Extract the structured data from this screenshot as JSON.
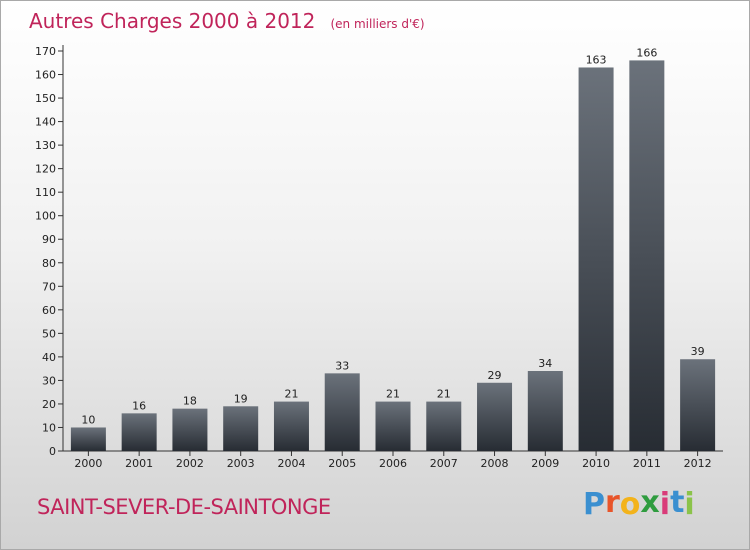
{
  "colors": {
    "accent": "#c0245a",
    "bar_light": "#6b727b",
    "bar_dark": "#272c33",
    "axis": "#333333",
    "text": "#222222"
  },
  "header": {
    "title": "Autres Charges 2000 à 2012",
    "subtitle": "(en milliers d'€)"
  },
  "footer": {
    "commune": "SAINT-SEVER-DE-SAINTONGE",
    "brand_letters": [
      "P",
      "r",
      "o",
      "x",
      "i",
      "t",
      "i"
    ],
    "brand_colors": [
      "#3a8fd0",
      "#e8552a",
      "#f3b31b",
      "#2f9c3f",
      "#d93b79",
      "#3a8fd0",
      "#8bc34a"
    ]
  },
  "chart_data": {
    "type": "bar",
    "title": "Autres Charges 2000 à 2012",
    "subtitle": "(en milliers d'€)",
    "categories": [
      "2000",
      "2001",
      "2002",
      "2003",
      "2004",
      "2005",
      "2006",
      "2007",
      "2008",
      "2009",
      "2010",
      "2011",
      "2012"
    ],
    "values": [
      10,
      16,
      18,
      19,
      21,
      33,
      21,
      21,
      29,
      34,
      163,
      166,
      39
    ],
    "ylim": [
      0,
      170
    ],
    "yticks": [
      0,
      10,
      20,
      30,
      40,
      50,
      60,
      70,
      80,
      90,
      100,
      110,
      120,
      130,
      140,
      150,
      160,
      170
    ],
    "xlabel": "",
    "ylabel": "",
    "grid": false,
    "data_labels": true
  }
}
